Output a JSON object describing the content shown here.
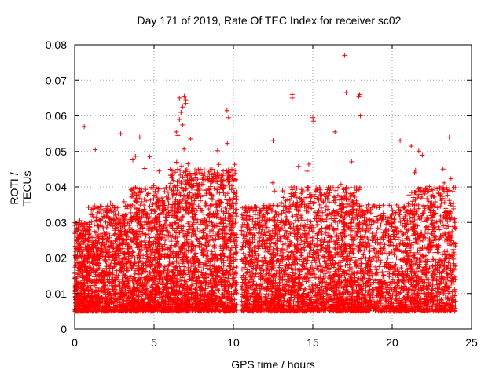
{
  "chart_data": {
    "type": "scatter",
    "title": "Day 171 of 2019, Rate Of TEC Index for receiver sc02",
    "xlabel": "GPS time / hours",
    "ylabel": "ROTI / TECUs",
    "xlim": [
      0,
      25
    ],
    "ylim": [
      0,
      0.08
    ],
    "xticks": [
      "0",
      "5",
      "10",
      "15",
      "20",
      "25"
    ],
    "yticks": [
      "0",
      "0.01",
      "0.02",
      "0.03",
      "0.04",
      "0.05",
      "0.06",
      "0.07",
      "0.08"
    ],
    "grid": true,
    "marker": "+",
    "marker_color": "#ff0000",
    "series": [
      {
        "name": "sc02",
        "density_profile": [
          {
            "x_range": [
              0.0,
              1.0
            ],
            "base_min": 0.005,
            "base_max": 0.03,
            "count": 500
          },
          {
            "x_range": [
              1.0,
              3.5
            ],
            "base_min": 0.005,
            "base_max": 0.035,
            "count": 900
          },
          {
            "x_range": [
              3.5,
              6.0
            ],
            "base_min": 0.005,
            "base_max": 0.04,
            "count": 1000
          },
          {
            "x_range": [
              6.0,
              8.5
            ],
            "base_min": 0.005,
            "base_max": 0.045,
            "count": 1000
          },
          {
            "x_range": [
              8.5,
              10.2
            ],
            "base_min": 0.005,
            "base_max": 0.045,
            "count": 700
          },
          {
            "x_range": [
              10.5,
              13.0
            ],
            "base_min": 0.005,
            "base_max": 0.035,
            "count": 800
          },
          {
            "x_range": [
              13.0,
              16.0
            ],
            "base_min": 0.005,
            "base_max": 0.04,
            "count": 900
          },
          {
            "x_range": [
              16.0,
              18.0
            ],
            "base_min": 0.005,
            "base_max": 0.04,
            "count": 700
          },
          {
            "x_range": [
              18.0,
              21.0
            ],
            "base_min": 0.005,
            "base_max": 0.035,
            "count": 800
          },
          {
            "x_range": [
              21.0,
              24.0
            ],
            "base_min": 0.005,
            "base_max": 0.04,
            "count": 900
          }
        ],
        "notable_points": [
          {
            "x": 17.0,
            "y": 0.077
          },
          {
            "x": 17.1,
            "y": 0.0665
          },
          {
            "x": 17.9,
            "y": 0.0655
          },
          {
            "x": 17.95,
            "y": 0.066
          },
          {
            "x": 18.0,
            "y": 0.06
          },
          {
            "x": 13.7,
            "y": 0.066
          },
          {
            "x": 13.7,
            "y": 0.065
          },
          {
            "x": 9.6,
            "y": 0.0615
          },
          {
            "x": 9.7,
            "y": 0.0595
          },
          {
            "x": 15.0,
            "y": 0.0595
          },
          {
            "x": 15.05,
            "y": 0.0585
          },
          {
            "x": 6.6,
            "y": 0.065
          },
          {
            "x": 6.9,
            "y": 0.0655
          },
          {
            "x": 7.0,
            "y": 0.0645
          },
          {
            "x": 7.0,
            "y": 0.0635
          },
          {
            "x": 6.8,
            "y": 0.0625
          },
          {
            "x": 6.7,
            "y": 0.061
          },
          {
            "x": 6.6,
            "y": 0.059
          },
          {
            "x": 6.8,
            "y": 0.0575
          },
          {
            "x": 6.4,
            "y": 0.0555
          },
          {
            "x": 6.5,
            "y": 0.0545
          },
          {
            "x": 16.4,
            "y": 0.0555
          },
          {
            "x": 23.6,
            "y": 0.054
          },
          {
            "x": 0.6,
            "y": 0.057
          },
          {
            "x": 2.9,
            "y": 0.055
          },
          {
            "x": 4.1,
            "y": 0.054
          },
          {
            "x": 20.5,
            "y": 0.053
          },
          {
            "x": 12.5,
            "y": 0.053
          },
          {
            "x": 1.3,
            "y": 0.0505
          },
          {
            "x": 21.2,
            "y": 0.0515
          }
        ]
      }
    ]
  }
}
